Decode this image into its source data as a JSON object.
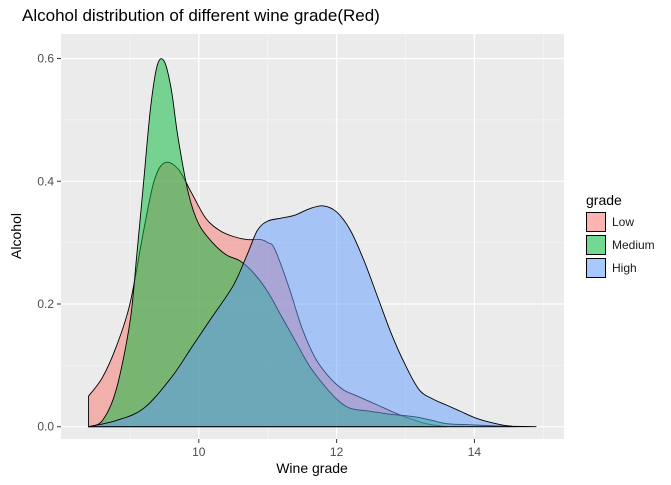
{
  "chart_data": {
    "type": "area",
    "title": "Alcohol distribution of different wine grade(Red)",
    "xlabel": "Wine grade",
    "ylabel": "Alcohol",
    "xlim": [
      8.0,
      15.3
    ],
    "ylim": [
      -0.02,
      0.64
    ],
    "x_ticks": [
      10,
      12,
      14
    ],
    "y_ticks": [
      0.0,
      0.2,
      0.4,
      0.6
    ],
    "y_tick_labels": [
      "0.0",
      "0.2",
      "0.4",
      "0.6"
    ],
    "grid": true,
    "legend": {
      "title": "grade",
      "position": "right"
    },
    "series": [
      {
        "name": "Low",
        "color": "#F8766D",
        "points": [
          [
            8.4,
            0.05
          ],
          [
            8.6,
            0.08
          ],
          [
            8.8,
            0.13
          ],
          [
            9.0,
            0.2
          ],
          [
            9.2,
            0.32
          ],
          [
            9.35,
            0.4
          ],
          [
            9.5,
            0.43
          ],
          [
            9.7,
            0.42
          ],
          [
            9.9,
            0.38
          ],
          [
            10.1,
            0.34
          ],
          [
            10.3,
            0.32
          ],
          [
            10.5,
            0.31
          ],
          [
            10.7,
            0.305
          ],
          [
            10.9,
            0.305
          ],
          [
            11.0,
            0.3
          ],
          [
            11.1,
            0.29
          ],
          [
            11.3,
            0.23
          ],
          [
            11.5,
            0.16
          ],
          [
            11.7,
            0.11
          ],
          [
            11.9,
            0.08
          ],
          [
            12.1,
            0.06
          ],
          [
            12.3,
            0.05
          ],
          [
            12.5,
            0.04
          ],
          [
            12.7,
            0.03
          ],
          [
            12.9,
            0.02
          ],
          [
            13.1,
            0.012
          ],
          [
            13.3,
            0.005
          ],
          [
            13.6,
            0.0
          ]
        ]
      },
      {
        "name": "Medium",
        "color": "#00BA38",
        "points": [
          [
            8.4,
            0.0
          ],
          [
            8.6,
            0.01
          ],
          [
            8.8,
            0.06
          ],
          [
            9.0,
            0.17
          ],
          [
            9.1,
            0.28
          ],
          [
            9.2,
            0.4
          ],
          [
            9.3,
            0.52
          ],
          [
            9.4,
            0.59
          ],
          [
            9.5,
            0.595
          ],
          [
            9.6,
            0.55
          ],
          [
            9.7,
            0.47
          ],
          [
            9.85,
            0.38
          ],
          [
            10.0,
            0.33
          ],
          [
            10.2,
            0.3
          ],
          [
            10.4,
            0.28
          ],
          [
            10.6,
            0.27
          ],
          [
            10.8,
            0.25
          ],
          [
            11.0,
            0.22
          ],
          [
            11.2,
            0.18
          ],
          [
            11.4,
            0.14
          ],
          [
            11.6,
            0.1
          ],
          [
            11.8,
            0.07
          ],
          [
            12.0,
            0.045
          ],
          [
            12.2,
            0.03
          ],
          [
            12.5,
            0.025
          ],
          [
            12.8,
            0.02
          ],
          [
            13.0,
            0.018
          ],
          [
            13.2,
            0.015
          ],
          [
            13.4,
            0.01
          ],
          [
            13.6,
            0.005
          ],
          [
            14.0,
            0.003
          ],
          [
            14.4,
            0.001
          ],
          [
            14.9,
            0.0
          ]
        ]
      },
      {
        "name": "High",
        "color": "#619CFF",
        "points": [
          [
            8.4,
            0.0
          ],
          [
            8.8,
            0.01
          ],
          [
            9.2,
            0.03
          ],
          [
            9.6,
            0.08
          ],
          [
            9.9,
            0.13
          ],
          [
            10.2,
            0.18
          ],
          [
            10.5,
            0.23
          ],
          [
            10.7,
            0.28
          ],
          [
            10.85,
            0.32
          ],
          [
            11.0,
            0.335
          ],
          [
            11.2,
            0.34
          ],
          [
            11.4,
            0.345
          ],
          [
            11.6,
            0.355
          ],
          [
            11.8,
            0.36
          ],
          [
            12.0,
            0.35
          ],
          [
            12.2,
            0.32
          ],
          [
            12.4,
            0.27
          ],
          [
            12.6,
            0.21
          ],
          [
            12.8,
            0.15
          ],
          [
            13.0,
            0.1
          ],
          [
            13.2,
            0.06
          ],
          [
            13.4,
            0.045
          ],
          [
            13.6,
            0.035
          ],
          [
            13.8,
            0.025
          ],
          [
            14.0,
            0.015
          ],
          [
            14.2,
            0.008
          ],
          [
            14.4,
            0.003
          ],
          [
            14.6,
            0.0
          ]
        ]
      }
    ]
  }
}
